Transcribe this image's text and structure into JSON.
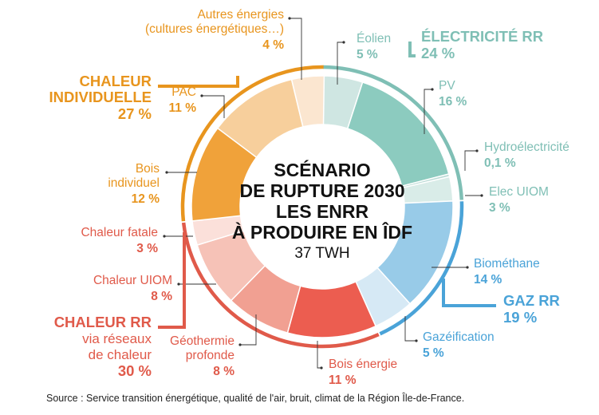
{
  "chart_data": {
    "type": "pie",
    "title_lines": [
      "SCÉNARIO",
      "DE RUPTURE 2030",
      "LES ENRR",
      "À PRODUIRE EN ÎDF"
    ],
    "total": "37 TWH",
    "source": "Source : Service transition énergétique, qualité de l'air, bruit, climat de la Région Île-de-France.",
    "colors": {
      "elec": "#7fbfb5",
      "gaz": "#4aa3d8",
      "chaleur_rr": "#e05a4a",
      "chaleur_ind": "#e8951e"
    },
    "groups": [
      {
        "id": "elec",
        "name_lines": [
          "ÉLECTRICITÉ RR"
        ],
        "value_label": "24 %"
      },
      {
        "id": "gaz",
        "name_lines": [
          "GAZ RR"
        ],
        "value_label": "19 %"
      },
      {
        "id": "chaleur_rr",
        "name_lines": [
          "CHALEUR RR",
          "via réseaux",
          "de chaleur"
        ],
        "value_label": "30 %"
      },
      {
        "id": "chaleur_ind",
        "name_lines": [
          "CHALEUR",
          "INDIVIDUELLE"
        ],
        "value_label": "27 %"
      }
    ],
    "slices": [
      {
        "group": "elec",
        "name_lines": [
          "Éolien"
        ],
        "value": 5,
        "value_label": "5 %",
        "color": "#cfe6e2"
      },
      {
        "group": "elec",
        "name_lines": [
          "PV"
        ],
        "value": 16,
        "value_label": "16 %",
        "color": "#8ccbbf"
      },
      {
        "group": "elec",
        "name_lines": [
          "Hydroélectricité"
        ],
        "value": 0.1,
        "value_label": "0,1 %",
        "color": "#bcdcd6"
      },
      {
        "group": "elec",
        "name_lines": [
          "Elec UIOM"
        ],
        "value": 3,
        "value_label": "3 %",
        "color": "#d9ece8"
      },
      {
        "group": "gaz",
        "name_lines": [
          "Biométhane"
        ],
        "value": 14,
        "value_label": "14 %",
        "color": "#98cbe8"
      },
      {
        "group": "gaz",
        "name_lines": [
          "Gazéification"
        ],
        "value": 5,
        "value_label": "5 %",
        "color": "#d6e9f5"
      },
      {
        "group": "chaleur_rr",
        "name_lines": [
          "Bois énergie"
        ],
        "value": 11,
        "value_label": "11 %",
        "color": "#ec5d50"
      },
      {
        "group": "chaleur_rr",
        "name_lines": [
          "Géothermie",
          "profonde"
        ],
        "value": 8,
        "value_label": "8 %",
        "color": "#f1a092"
      },
      {
        "group": "chaleur_rr",
        "name_lines": [
          "Chaleur UIOM"
        ],
        "value": 8,
        "value_label": "8 %",
        "color": "#f6c2b7"
      },
      {
        "group": "chaleur_rr",
        "name_lines": [
          "Chaleur fatale"
        ],
        "value": 3,
        "value_label": "3 %",
        "color": "#fbe0da"
      },
      {
        "group": "chaleur_ind",
        "name_lines": [
          "Bois",
          "individuel"
        ],
        "value": 12,
        "value_label": "12 %",
        "color": "#f0a23a"
      },
      {
        "group": "chaleur_ind",
        "name_lines": [
          "PAC"
        ],
        "value": 11,
        "value_label": "11 %",
        "color": "#f7cf9c"
      },
      {
        "group": "chaleur_ind",
        "name_lines": [
          "Autres énergies",
          "(cultures énergétiques…)"
        ],
        "value": 4,
        "value_label": "4 %",
        "color": "#fbe6d0"
      }
    ]
  }
}
